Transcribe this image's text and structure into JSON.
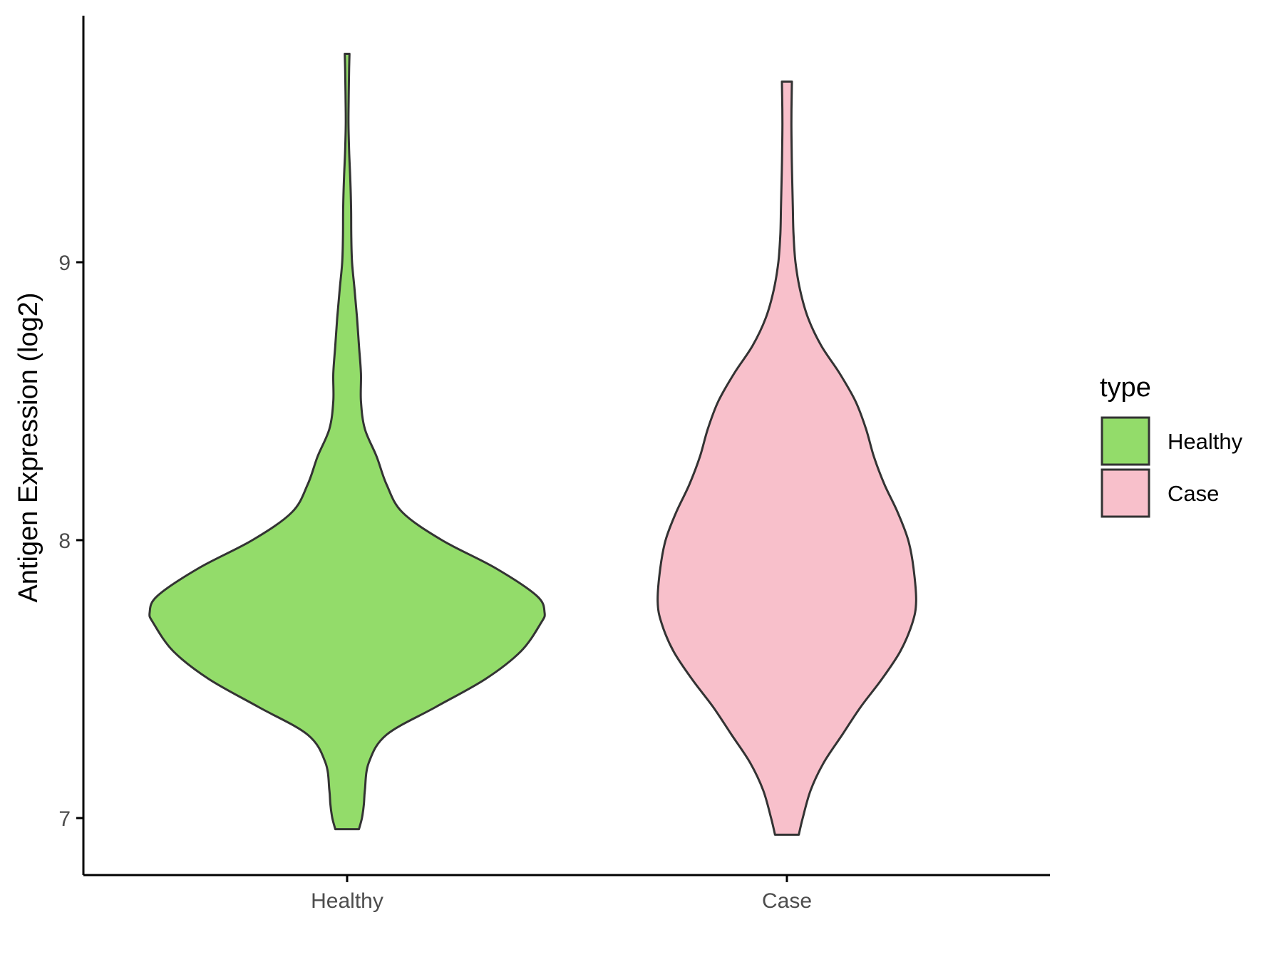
{
  "chart_data": {
    "type": "violin",
    "title": "",
    "xlabel": "",
    "ylabel": "Antigen Expression (log2)",
    "categories": [
      "Healthy",
      "Case"
    ],
    "yticks": [
      7,
      8,
      9
    ],
    "ylim": [
      6.8,
      9.9
    ],
    "grid": false,
    "legend": {
      "title": "type",
      "placement": "right",
      "entries": [
        {
          "label": "Healthy",
          "color": "#93DC6A"
        },
        {
          "label": "Case",
          "color": "#F8C0CB"
        }
      ]
    },
    "series": [
      {
        "name": "Healthy",
        "color": "#93DC6A",
        "min": 6.96,
        "max": 9.75,
        "density": [
          [
            6.96,
            0.06
          ],
          [
            7.0,
            0.075
          ],
          [
            7.05,
            0.085
          ],
          [
            7.1,
            0.09
          ],
          [
            7.2,
            0.11
          ],
          [
            7.3,
            0.2
          ],
          [
            7.4,
            0.45
          ],
          [
            7.5,
            0.7
          ],
          [
            7.6,
            0.88
          ],
          [
            7.7,
            0.98
          ],
          [
            7.74,
            1.0
          ],
          [
            7.8,
            0.96
          ],
          [
            7.9,
            0.75
          ],
          [
            8.0,
            0.48
          ],
          [
            8.1,
            0.28
          ],
          [
            8.2,
            0.2
          ],
          [
            8.3,
            0.15
          ],
          [
            8.4,
            0.09
          ],
          [
            8.5,
            0.07
          ],
          [
            8.6,
            0.07
          ],
          [
            8.7,
            0.06
          ],
          [
            8.8,
            0.05
          ],
          [
            8.9,
            0.038
          ],
          [
            9.0,
            0.025
          ],
          [
            9.1,
            0.021
          ],
          [
            9.2,
            0.02
          ],
          [
            9.3,
            0.016
          ],
          [
            9.4,
            0.01
          ],
          [
            9.5,
            0.007
          ],
          [
            9.6,
            0.008
          ],
          [
            9.7,
            0.01
          ],
          [
            9.75,
            0.012
          ]
        ]
      },
      {
        "name": "Case",
        "color": "#F8C0CB",
        "min": 6.94,
        "max": 9.65,
        "density": [
          [
            6.94,
            0.09
          ],
          [
            7.0,
            0.12
          ],
          [
            7.1,
            0.18
          ],
          [
            7.2,
            0.28
          ],
          [
            7.3,
            0.42
          ],
          [
            7.4,
            0.56
          ],
          [
            7.5,
            0.72
          ],
          [
            7.6,
            0.86
          ],
          [
            7.7,
            0.95
          ],
          [
            7.78,
            0.98
          ],
          [
            7.9,
            0.96
          ],
          [
            8.0,
            0.92
          ],
          [
            8.1,
            0.84
          ],
          [
            8.2,
            0.74
          ],
          [
            8.3,
            0.66
          ],
          [
            8.4,
            0.6
          ],
          [
            8.5,
            0.52
          ],
          [
            8.6,
            0.4
          ],
          [
            8.7,
            0.26
          ],
          [
            8.8,
            0.16
          ],
          [
            8.9,
            0.1
          ],
          [
            9.0,
            0.065
          ],
          [
            9.1,
            0.05
          ],
          [
            9.2,
            0.045
          ],
          [
            9.3,
            0.04
          ],
          [
            9.4,
            0.036
          ],
          [
            9.5,
            0.034
          ],
          [
            9.6,
            0.036
          ],
          [
            9.65,
            0.038
          ]
        ]
      }
    ]
  }
}
